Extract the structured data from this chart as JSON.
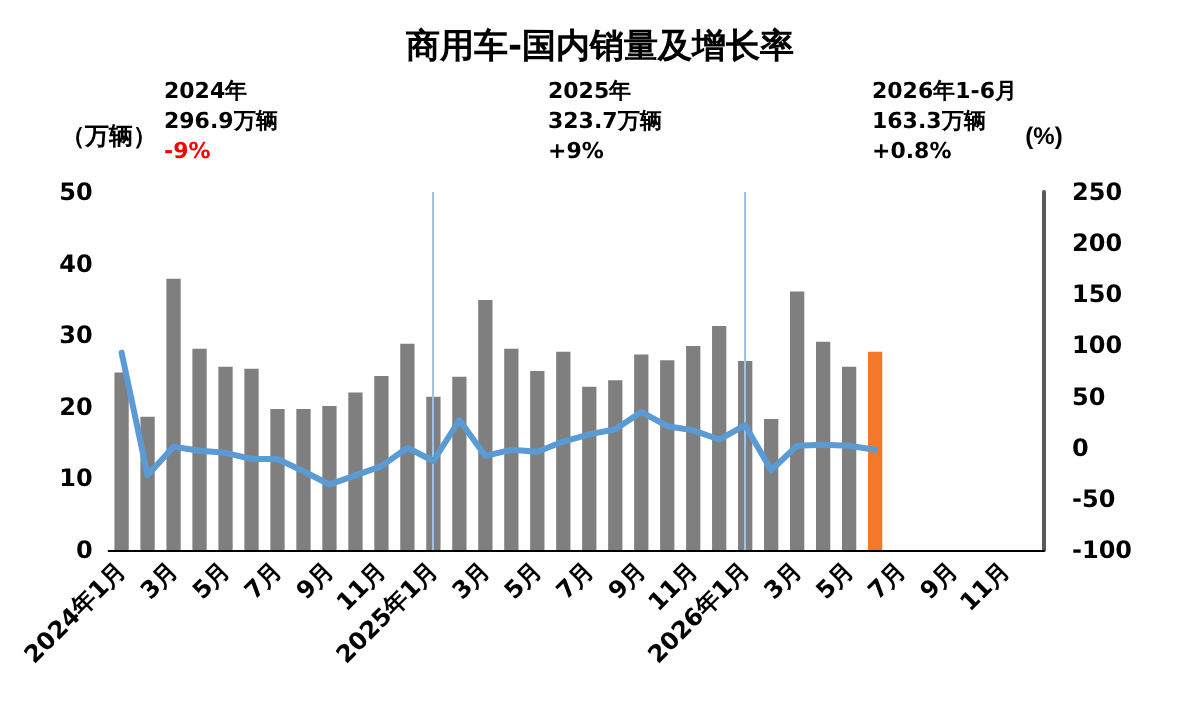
{
  "chart_data": {
    "type": "bar",
    "title": "商用车-国内销量及增长率",
    "ylabel": "（万辆）",
    "y2label": "(%)",
    "categories": [
      "2024年1月",
      null,
      "3月",
      null,
      "5月",
      null,
      "7月",
      null,
      "9月",
      null,
      "11月",
      null,
      "2025年1月",
      null,
      "3月",
      null,
      "5月",
      null,
      "7月",
      null,
      "9月",
      null,
      "11月",
      null,
      "2026年1月",
      null,
      "3月",
      null,
      "5月",
      null,
      "7月",
      null,
      "9月",
      null,
      "11月",
      null
    ],
    "series": [
      {
        "color": "#7f7f7f",
        "colors": [
          "#7f7f7f",
          "#7f7f7f",
          "#7f7f7f",
          "#7f7f7f",
          "#7f7f7f",
          "#7f7f7f",
          "#7f7f7f",
          "#7f7f7f",
          "#7f7f7f",
          "#7f7f7f",
          "#7f7f7f",
          "#7f7f7f",
          "#7f7f7f",
          "#7f7f7f",
          "#7f7f7f",
          "#7f7f7f",
          "#7f7f7f",
          "#7f7f7f",
          "#7f7f7f",
          "#7f7f7f",
          "#7f7f7f",
          "#7f7f7f",
          "#7f7f7f",
          "#7f7f7f",
          "#7f7f7f",
          "#7f7f7f",
          "#7f7f7f",
          "#7f7f7f",
          "#7f7f7f",
          "#f4782a",
          null,
          null,
          null,
          null,
          null,
          null
        ],
        "values": [
          24.8,
          18.6,
          37.9,
          28.1,
          25.6,
          25.3,
          19.7,
          19.7,
          20.1,
          22.0,
          24.3,
          28.8,
          21.4,
          24.2,
          34.9,
          28.1,
          25.0,
          27.7,
          22.8,
          23.7,
          27.3,
          26.5,
          28.5,
          31.3,
          26.4,
          18.3,
          36.1,
          29.1,
          25.6,
          27.7,
          null,
          null,
          null,
          null,
          null,
          null
        ]
      },
      {
        "type": "line",
        "axis": "y2",
        "color": "#5b9bd5",
        "values": [
          93,
          -27,
          1,
          -3,
          -5,
          -11,
          -11,
          -23,
          -36,
          -27,
          -18,
          0,
          -13,
          27,
          -8,
          -2,
          -4,
          6,
          13,
          18,
          35,
          21,
          17,
          8,
          22,
          -22,
          2,
          3,
          2,
          -2,
          null,
          null,
          null,
          null,
          null,
          null
        ]
      }
    ],
    "ylim": [
      0,
      50
    ],
    "yticks": [
      0,
      10,
      20,
      30,
      40,
      50
    ],
    "y2lim": [
      -100,
      250
    ],
    "y2ticks": [
      -100,
      -50,
      0,
      50,
      100,
      150,
      200,
      250
    ],
    "ref_lines": [
      {
        "axis": "x",
        "value": "2025年1月",
        "color": "#9dc3e6"
      },
      {
        "axis": "x",
        "value": "2026年1月",
        "color": "#9dc3e6"
      }
    ],
    "annotations": [
      "2024年\n296.9万辆",
      "-9%",
      "2025年\n323.7万辆",
      "+9%",
      "2026年1-6月\n163.3万辆",
      "+0.8%"
    ],
    "grid": false,
    "marker": "none",
    "line_style": "solid"
  }
}
